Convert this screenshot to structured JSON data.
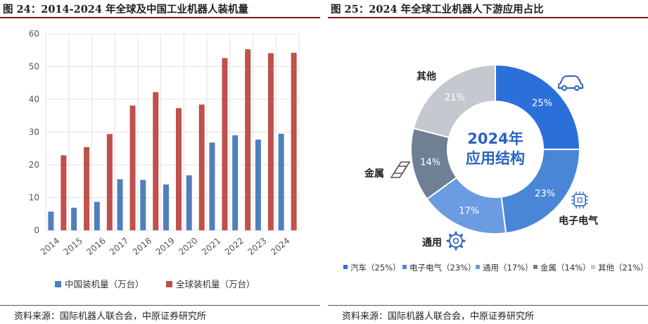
{
  "left_panel": {
    "title": "图 24：2014-2024 年全球及中国工业机器人装机量",
    "source": "资料来源：国际机器人联合会，中原证券研究所"
  },
  "right_panel": {
    "title": "图 25：2024 年全球工业机器人下游应用占比",
    "source": "资料来源：国际机器人联合会，中原证券研究所"
  },
  "chart_data": [
    {
      "type": "bar",
      "title": "2014-2024 年全球及中国工业机器人装机量",
      "categories": [
        "2014",
        "2015",
        "2016",
        "2017",
        "2018",
        "2019",
        "2020",
        "2021",
        "2022",
        "2023",
        "2024"
      ],
      "series": [
        {
          "name": "中国装机量（万台）",
          "color": "#4f7fbf",
          "values": [
            5.7,
            6.9,
            8.7,
            15.6,
            15.4,
            14.0,
            16.8,
            26.8,
            29.0,
            27.7,
            29.5
          ]
        },
        {
          "name": "全球装机量（万台）",
          "color": "#c0504d",
          "values": [
            22.9,
            25.4,
            29.4,
            38.1,
            42.2,
            37.3,
            38.4,
            52.6,
            55.3,
            54.1,
            54.2
          ]
        }
      ],
      "ylim": [
        0,
        60
      ],
      "yticks": [
        0,
        10,
        20,
        30,
        40,
        50,
        60
      ],
      "grid": true,
      "legend": "bottom"
    },
    {
      "type": "pie",
      "title": "2024 年全球工业机器人下游应用占比",
      "center_label": [
        "2024年",
        "应用结构"
      ],
      "slices": [
        {
          "name": "汽车",
          "value": 25,
          "label": "25%",
          "color": "#2b6fd9",
          "icon": "car-icon"
        },
        {
          "name": "电子电气",
          "value": 23,
          "label": "23%",
          "color": "#4a86d8",
          "icon": "chip-icon"
        },
        {
          "name": "通用",
          "value": 17,
          "label": "17%",
          "color": "#6b9be0",
          "icon": "gear-icon"
        },
        {
          "name": "金属",
          "value": 14,
          "label": "14%",
          "color": "#6f7f94",
          "icon": "steel-beam-icon"
        },
        {
          "name": "其他",
          "value": 21,
          "label": "21%",
          "color": "#c5c8ce",
          "icon": ""
        }
      ],
      "legend_items": [
        "汽车（25%）",
        "电子电气（23%）",
        "通用（17%）",
        "金属（14%）",
        "其他（21%）"
      ],
      "legend": "bottom"
    }
  ]
}
